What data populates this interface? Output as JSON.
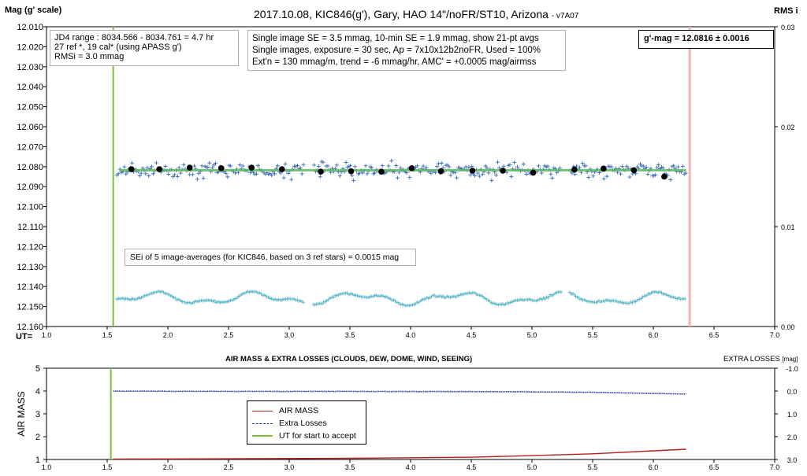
{
  "top_chart": {
    "title": "2017.10.08,  KIC846(g'),  Gary,  HAO  14\"/noFR/ST10,  Arizona",
    "version": "- v7A07",
    "ylabel_left": "Mag (g' scale)",
    "ylabel_right": "RMS i",
    "x_axis_prefix": "UT=",
    "info_box_1": [
      "JD4 range : 8034.566 - 8034.761 =  4.7 hr",
      "27 ref *, 19 cal* (using APASS g')",
      "RMSi = 3.0 mmag"
    ],
    "info_box_2": [
      "Single image SE = 3.5 mmag, 10-min SE = 1.9 mmag, show 21-pt avgs",
      "Single images, exposure = 30 sec, Ap = 7x10x12b2noFR, Used = 100%",
      "Ext'n = 130 mmag/m, trend =  -6 mmag/hr, AMC' = +0.0005 mag/airmss"
    ],
    "mag_box": "g'-mag = 12.0816 ± 0.0016",
    "se_box": "SEi of 5 image-averages (for KIC846, based on 3 ref stars) = 0.0015 mag",
    "colors": {
      "points": "#3a6ab8",
      "avg": "#000000",
      "trend": "#5cb85c",
      "rms": "#5fb8c8",
      "start_line": "#7cc13e",
      "end_line": "#f4b3b3"
    }
  },
  "bottom_chart": {
    "title": "AIR MASS & EXTRA LOSSES (CLOUDS, DEW, DOME, WIND, SEEING)",
    "ylabel_left": "AIR MASS",
    "ylabel_right": "EXTRA LOSSES",
    "ylabel_right_unit": "[mag]",
    "legend": [
      "AIR MASS",
      "Extra Losses",
      "UT for start to accept"
    ],
    "colors": {
      "airmass": "#b22222",
      "losses": "#1f3fa8",
      "start_line": "#7cc13e"
    }
  },
  "chart_data": [
    {
      "type": "scatter",
      "x_range": [
        1.0,
        7.0
      ],
      "x_ticks": [
        1.0,
        1.5,
        2.0,
        2.5,
        3.0,
        3.5,
        4.0,
        4.5,
        5.0,
        5.5,
        6.0,
        6.5,
        7.0
      ],
      "y_left_range": [
        12.16,
        12.01
      ],
      "y_left_ticks": [
        12.01,
        12.02,
        12.03,
        12.04,
        12.05,
        12.06,
        12.07,
        12.08,
        12.09,
        12.1,
        12.11,
        12.12,
        12.13,
        12.14,
        12.15,
        12.16
      ],
      "y_right_range": [
        0.0,
        0.03
      ],
      "y_right_ticks": [
        0.0,
        0.01,
        0.02,
        0.03
      ],
      "ut_start_accept": 1.55,
      "ut_end": 6.3,
      "trend_line": {
        "x": [
          1.6,
          6.27
        ],
        "y": [
          12.0818,
          12.0818
        ]
      },
      "series": [
        {
          "name": "21-pt avgs",
          "x": [
            1.7,
            1.93,
            2.18,
            2.44,
            2.69,
            2.94,
            3.26,
            3.51,
            3.76,
            4.01,
            4.25,
            4.51,
            4.76,
            5.01,
            5.35,
            5.59,
            5.84,
            6.09
          ],
          "y": [
            12.0813,
            12.0813,
            12.0805,
            12.0808,
            12.0805,
            12.0813,
            12.0825,
            12.0823,
            12.0825,
            12.0808,
            12.0823,
            12.082,
            12.082,
            12.083,
            12.0815,
            12.081,
            12.0818,
            12.085
          ]
        }
      ],
      "single_images": {
        "x_range": [
          1.58,
          6.27
        ],
        "gaps": [
          [
            3.12,
            3.2
          ],
          [
            5.24,
            5.31
          ]
        ],
        "mean": 12.0818,
        "scatter_mag": 0.0035
      }
    },
    {
      "type": "line",
      "x_range": [
        1.0,
        7.0
      ],
      "x_ticks": [
        1.0,
        1.5,
        2.0,
        2.5,
        3.0,
        3.5,
        4.0,
        4.5,
        5.0,
        5.5,
        6.0,
        6.5,
        7.0
      ],
      "y_left_range": [
        1,
        5
      ],
      "y_left_ticks": [
        1,
        2,
        3,
        4,
        5
      ],
      "y_right_ticks": [
        -1.0,
        0.0,
        1.0,
        2.0,
        3.0
      ],
      "ut_start_accept": 1.53,
      "series": [
        {
          "name": "AIR MASS",
          "x": [
            1.55,
            2.5,
            3.5,
            4.5,
            5.0,
            5.5,
            6.0,
            6.27
          ],
          "y": [
            1.02,
            1.03,
            1.05,
            1.1,
            1.17,
            1.25,
            1.38,
            1.45
          ]
        },
        {
          "name": "Extra Losses",
          "x": [
            1.55,
            2.5,
            3.5,
            4.5,
            5.0,
            5.5,
            6.0,
            6.27
          ],
          "y": [
            0.0,
            0.01,
            0.01,
            0.02,
            0.03,
            0.05,
            0.1,
            0.13
          ]
        }
      ]
    }
  ]
}
